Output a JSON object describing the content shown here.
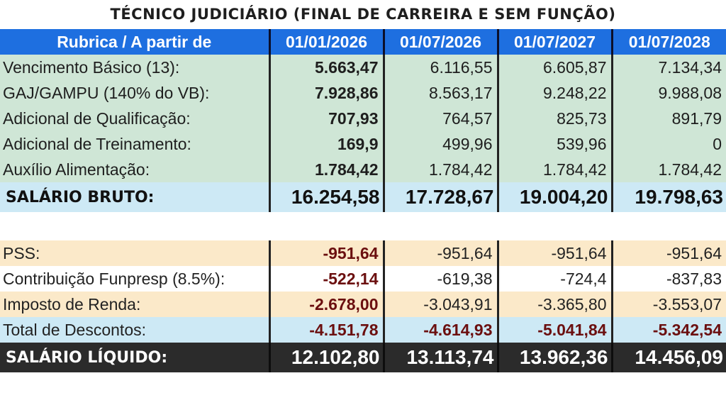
{
  "title": "TÉCNICO JUDICIÁRIO (FINAL DE CARREIRA E SEM FUNÇÃO)",
  "header": {
    "label": "Rubrica / A partir de",
    "dates": [
      "01/01/2026",
      "01/07/2026",
      "01/07/2027",
      "01/07/2028"
    ]
  },
  "earnings": [
    {
      "label": "Vencimento Básico (13):",
      "values": [
        "5.663,47",
        "6.116,55",
        "6.605,87",
        "7.134,34"
      ]
    },
    {
      "label": "GAJ/GAMPU (140% do VB):",
      "values": [
        "7.928,86",
        "8.563,17",
        "9.248,22",
        "9.988,08"
      ]
    },
    {
      "label": "Adicional de Qualificação:",
      "values": [
        "707,93",
        "764,57",
        "825,73",
        "891,79"
      ]
    },
    {
      "label": "Adicional de Treinamento:",
      "values": [
        "169,9",
        "499,96",
        "539,96",
        "0"
      ]
    },
    {
      "label": "Auxílio Alimentação:",
      "values": [
        "1.784,42",
        "1.784,42",
        "1.784,42",
        "1.784,42"
      ]
    }
  ],
  "gross": {
    "label": "SALÁRIO BRUTO:",
    "values": [
      "16.254,58",
      "17.728,67",
      "19.004,20",
      "19.798,63"
    ]
  },
  "deductions": [
    {
      "label": "PSS:",
      "values": [
        "-951,64",
        "-951,64",
        "-951,64",
        "-951,64"
      ]
    },
    {
      "label": "Contribuição Funpresp (8.5%):",
      "values": [
        "-522,14",
        "-619,38",
        "-724,4",
        "-837,83"
      ]
    },
    {
      "label": "Imposto de Renda:",
      "values": [
        "-2.678,00",
        "-3.043,91",
        "-3.365,80",
        "-3.553,07"
      ]
    }
  ],
  "total_deductions": {
    "label": "Total de Descontos:",
    "values": [
      "-4.151,78",
      "-4.614,93",
      "-5.041,84",
      "-5.342,54"
    ]
  },
  "net": {
    "label": "SALÁRIO LÍQUIDO:",
    "values": [
      "12.102,80",
      "13.113,74",
      "13.962,36",
      "14.456,09"
    ]
  }
}
